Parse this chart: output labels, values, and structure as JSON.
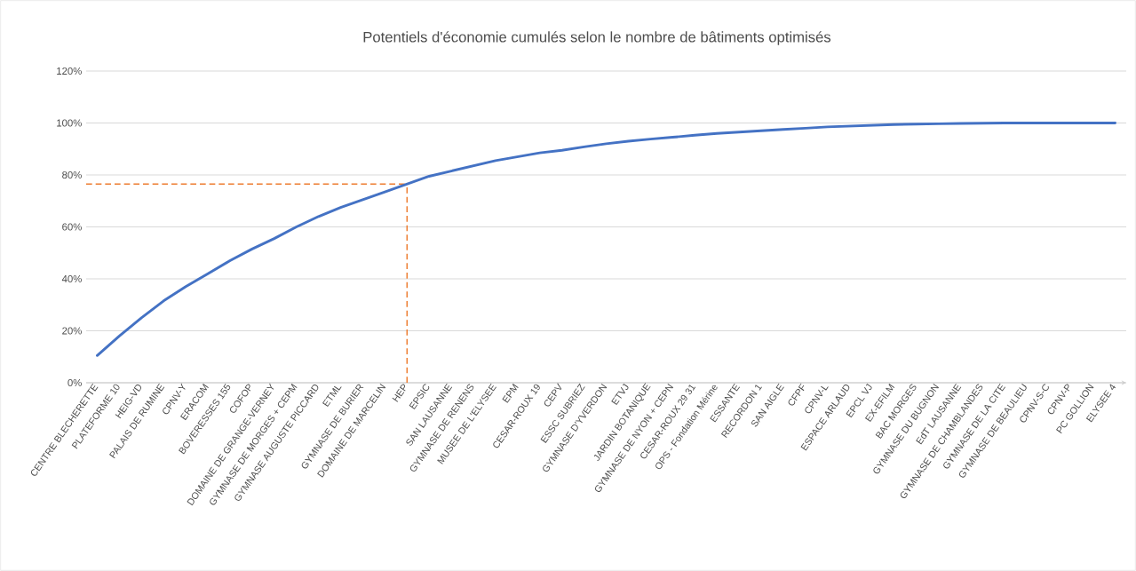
{
  "chart_data": {
    "type": "line",
    "title": "Potentiels d'économie cumulés selon le nombre de bâtiments optimisés",
    "categories": [
      "CENTRE BLECHERETTE",
      "PLATEFORME 10",
      "HEIG-VD",
      "PALAIS DE RUMINE",
      "CPNV-Y",
      "ERACOM",
      "BOVERESSES 155",
      "COFOP",
      "DOMAINE DE GRANGE-VERNEY",
      "GYMNASE DE MORGES + CEPM",
      "GYMNASE AUGUSTE PICCARD",
      "ETML",
      "GYMNASE DE BURIER",
      "DOMAINE DE MARCELIN",
      "HEP",
      "EPSIC",
      "SAN LAUSANNE",
      "GYMNASE DE RENENS",
      "MUSEE DE L'ELYSEE",
      "EPM",
      "CESAR-ROUX 19",
      "CEPV",
      "ESSC SUBRIEZ",
      "GYMNASE D'YVERDON",
      "ETVJ",
      "JARDIN BOTANIQUE",
      "GYMNASE DE NYON + CEPN",
      "CESAR-ROUX 29 31",
      "OPS - Fondation Mérine",
      "ESSANTE",
      "RECORDON 1",
      "SAN AIGLE",
      "CFPF",
      "CPNV-L",
      "ESPACE ARLAUD",
      "EPCL VJ",
      "EX-EFILM",
      "BAC MORGES",
      "GYMNASE DU BUGNON",
      "EdT LAUSANNE",
      "GYMNASE DE CHAMBLANDES",
      "GYMNASE DE LA CITE",
      "GYMNASE DE BEAULIEU",
      "CPNV-S-C",
      "CPNV-P",
      "PC GOLLION",
      "ELYSEE 4"
    ],
    "series": [
      {
        "color": "#4472c4",
        "values": [
          10.5,
          18,
          25,
          31.5,
          37,
          42,
          47,
          51.5,
          55.5,
          60,
          64,
          67.5,
          70.5,
          73.5,
          76.5,
          79.5,
          81.5,
          83.5,
          85.5,
          87,
          88.5,
          89.5,
          90.8,
          92,
          93,
          93.8,
          94.5,
          95.3,
          96,
          96.5,
          97,
          97.5,
          98,
          98.5,
          98.8,
          99.1,
          99.4,
          99.6,
          99.7,
          99.8,
          99.9,
          100,
          100,
          100,
          100,
          100,
          100
        ]
      }
    ],
    "ylim": [
      0,
      120
    ],
    "yticks": [
      {
        "value": 0,
        "label": "0%"
      },
      {
        "value": 20,
        "label": "20%"
      },
      {
        "value": 40,
        "label": "40%"
      },
      {
        "value": 60,
        "label": "60%"
      },
      {
        "value": 80,
        "label": "80%"
      },
      {
        "value": 100,
        "label": "100%"
      },
      {
        "value": 120,
        "label": "120%"
      }
    ],
    "grid": "y",
    "marker": "none",
    "line_style": "solid",
    "ref_lines": [
      {
        "axis": "y",
        "value": 76.5,
        "color": "#ed7d31",
        "line_style": "dashed"
      },
      {
        "axis": "x",
        "value": "HEP",
        "color": "#ed7d31",
        "line_style": "dashed"
      }
    ]
  }
}
